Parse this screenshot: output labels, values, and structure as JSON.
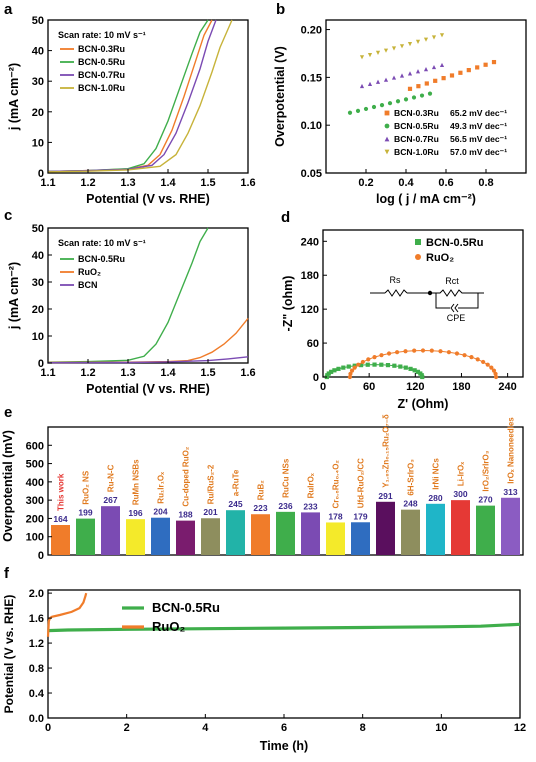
{
  "colors": {
    "orange": "#F07C2A",
    "green": "#3FAE4B",
    "purple": "#7B4BB3",
    "olive": "#C7B33A",
    "red": "#E53935",
    "blue": "#2F6DC0",
    "axis": "#000000"
  },
  "panel_labels": [
    "a",
    "b",
    "c",
    "d",
    "e",
    "f"
  ],
  "chart_data": [
    {
      "id": "a",
      "type": "line",
      "xlabel": "Potential (V vs. RHE)",
      "ylabel": "j (mA cm⁻²)",
      "xlim": [
        1.1,
        1.6
      ],
      "ylim": [
        0,
        50
      ],
      "xticks": [
        "1.1",
        "1.2",
        "1.3",
        "1.4",
        "1.5",
        "1.6"
      ],
      "yticks": [
        "0",
        "10",
        "20",
        "30",
        "40",
        "50"
      ],
      "annotation": "Scan rate: 10 mV s⁻¹",
      "series": [
        {
          "name": "BCN-0.3Ru",
          "color": "#F07C2A",
          "x": [
            1.1,
            1.2,
            1.3,
            1.35,
            1.38,
            1.41,
            1.44,
            1.47,
            1.49,
            1.51
          ],
          "y": [
            0.5,
            0.8,
            1.3,
            2.5,
            6,
            14,
            25,
            37,
            45,
            50
          ]
        },
        {
          "name": "BCN-0.5Ru",
          "color": "#3FAE4B",
          "x": [
            1.1,
            1.2,
            1.3,
            1.34,
            1.37,
            1.4,
            1.43,
            1.46,
            1.48,
            1.5
          ],
          "y": [
            0.5,
            0.8,
            1.4,
            3,
            8,
            17,
            28,
            39,
            46,
            50
          ]
        },
        {
          "name": "BCN-0.7Ru",
          "color": "#7B4BB3",
          "x": [
            1.1,
            1.2,
            1.3,
            1.36,
            1.39,
            1.42,
            1.45,
            1.48,
            1.5,
            1.52
          ],
          "y": [
            0.5,
            0.8,
            1.2,
            2.5,
            6,
            13,
            23,
            34,
            43,
            50
          ]
        },
        {
          "name": "BCN-1.0Ru",
          "color": "#C7B33A",
          "x": [
            1.1,
            1.2,
            1.3,
            1.38,
            1.42,
            1.45,
            1.48,
            1.51,
            1.53,
            1.56
          ],
          "y": [
            0.4,
            0.6,
            1.0,
            2.2,
            6,
            13,
            22,
            33,
            41,
            50
          ]
        }
      ]
    },
    {
      "id": "b",
      "type": "scatter",
      "xlabel": "log ( j / mA cm⁻²)",
      "ylabel": "Overpotential (V)",
      "xlim": [
        0,
        1.0
      ],
      "ylim": [
        0.05,
        0.21
      ],
      "xticks": [
        "0.2",
        "0.4",
        "0.6",
        "0.8"
      ],
      "yticks": [
        "0.05",
        "0.10",
        "0.15",
        "0.20"
      ],
      "series": [
        {
          "name": "BCN-0.3Ru",
          "slope": "65.2 mV dec⁻¹",
          "color": "#F07C2A",
          "marker": "square",
          "x0": 0.42,
          "x1": 0.84,
          "y0": 0.138,
          "y1": 0.166
        },
        {
          "name": "BCN-0.5Ru",
          "slope": "49.3 mV dec⁻¹",
          "color": "#3FAE4B",
          "marker": "circle",
          "x0": 0.12,
          "x1": 0.52,
          "y0": 0.113,
          "y1": 0.133
        },
        {
          "name": "BCN-0.7Ru",
          "slope": "56.5 mV dec⁻¹",
          "color": "#7B4BB3",
          "marker": "triangle-up",
          "x0": 0.18,
          "x1": 0.58,
          "y0": 0.141,
          "y1": 0.163
        },
        {
          "name": "BCN-1.0Ru",
          "slope": "57.0 mV dec⁻¹",
          "color": "#C7B33A",
          "marker": "triangle-down",
          "x0": 0.18,
          "x1": 0.58,
          "y0": 0.171,
          "y1": 0.194
        }
      ]
    },
    {
      "id": "c",
      "type": "line",
      "xlabel": "Potential (V vs. RHE)",
      "ylabel": "j (mA cm⁻²)",
      "xlim": [
        1.1,
        1.6
      ],
      "ylim": [
        0,
        50
      ],
      "xticks": [
        "1.1",
        "1.2",
        "1.3",
        "1.4",
        "1.5",
        "1.6"
      ],
      "yticks": [
        "0",
        "10",
        "20",
        "30",
        "40",
        "50"
      ],
      "annotation": "Scan rate: 10 mV s⁻¹",
      "series": [
        {
          "name": "BCN-0.5Ru",
          "color": "#3FAE4B",
          "x": [
            1.1,
            1.2,
            1.3,
            1.34,
            1.37,
            1.4,
            1.43,
            1.46,
            1.48,
            1.5
          ],
          "y": [
            0.3,
            0.5,
            1.0,
            2.5,
            7,
            15,
            26,
            37,
            45,
            50
          ]
        },
        {
          "name": "RuO₂",
          "color": "#F07C2A",
          "x": [
            1.1,
            1.3,
            1.4,
            1.45,
            1.48,
            1.51,
            1.54,
            1.57,
            1.6
          ],
          "y": [
            0.2,
            0.3,
            0.5,
            0.9,
            2,
            4,
            7,
            11,
            16.5
          ]
        },
        {
          "name": "BCN",
          "color": "#7B4BB3",
          "x": [
            1.1,
            1.3,
            1.4,
            1.5,
            1.55,
            1.6
          ],
          "y": [
            0.1,
            0.2,
            0.4,
            0.9,
            1.5,
            2.3
          ]
        }
      ]
    },
    {
      "id": "d",
      "type": "scatter",
      "xlabel": "Z' (Ohm)",
      "ylabel": "-Z\" (ohm)",
      "xlim": [
        0,
        260
      ],
      "ylim": [
        0,
        260
      ],
      "xticks": [
        "0",
        "60",
        "120",
        "180",
        "240"
      ],
      "yticks": [
        "0",
        "60",
        "120",
        "180",
        "240"
      ],
      "circuit_labels": {
        "rs": "Rs",
        "rct": "Rct",
        "cpe": "CPE"
      },
      "series": [
        {
          "name": "BCN-0.5Ru",
          "color": "#3FAE4B",
          "marker": "square",
          "center": 67,
          "radius": 62
        },
        {
          "name": "RuO₂",
          "color": "#F07C2A",
          "marker": "circle",
          "center": 130,
          "radius": 95
        }
      ]
    },
    {
      "id": "e",
      "type": "bar",
      "ylabel": "Overpotential (mV)",
      "ylim": [
        0,
        700
      ],
      "yticks": [
        "0",
        "100",
        "200",
        "300",
        "400",
        "500",
        "600"
      ],
      "categories": [
        "This work",
        "RuO₂ NS",
        "Ru-N-C",
        "RuMn NSBs",
        "Ru₁Ir₁Oₓ",
        "Cu-doped RuO₂",
        "Ru/RuS₂-2",
        "a-RuTe",
        "RuB₂",
        "RuCu NSs",
        "RuIrOₓ",
        "Cr₀.₆Ru₀.₄O₂",
        "Ufd-RuO₂/CC",
        "Y₁.₈₅Zn₀.₁₅Ru₂O₇₋δ",
        "6H-SrIrO₃",
        "IrNi NCs",
        "Li-IrOₓ",
        "IrO₂/SrIrO₃",
        "IrOₓ Nanoneedles"
      ],
      "values": [
        164,
        199,
        267,
        196,
        204,
        188,
        201,
        245,
        223,
        236,
        233,
        178,
        179,
        291,
        248,
        280,
        300,
        270,
        313
      ],
      "bar_colors": [
        "#F07C2A",
        "#3FAE4B",
        "#7B4BB3",
        "#F4EA2A",
        "#2F6DC0",
        "#7A1C6E",
        "#8E8E5E",
        "#22B3A8",
        "#F07C2A",
        "#3FAE4B",
        "#7B4BB3",
        "#F4EA2A",
        "#2F6DC0",
        "#5A0F5E",
        "#8E8E5E",
        "#1FB5C8",
        "#E53935",
        "#3FAE4B",
        "#8B5CC2"
      ],
      "label_colors": [
        "#E53935",
        "#E07A1F",
        "#E07A1F",
        "#E07A1F",
        "#E07A1F",
        "#E07A1F",
        "#E07A1F",
        "#E07A1F",
        "#E07A1F",
        "#E07A1F",
        "#E07A1F",
        "#E07A1F",
        "#E07A1F",
        "#E07A1F",
        "#E07A1F",
        "#E07A1F",
        "#E07A1F",
        "#E07A1F",
        "#E07A1F"
      ]
    },
    {
      "id": "f",
      "type": "line",
      "xlabel": "Time (h)",
      "ylabel": "Potential (V vs. RHE)",
      "xlim": [
        0,
        12
      ],
      "ylim": [
        0.0,
        2.05
      ],
      "xticks": [
        "0",
        "2",
        "4",
        "6",
        "8",
        "10",
        "12"
      ],
      "yticks": [
        "0.0",
        "0.4",
        "0.8",
        "1.2",
        "1.6",
        "2.0"
      ],
      "series": [
        {
          "name": "BCN-0.5Ru",
          "color": "#3FAE4B",
          "x": [
            0,
            0.5,
            2,
            4,
            6,
            8,
            10,
            11,
            12
          ],
          "y": [
            1.4,
            1.41,
            1.42,
            1.43,
            1.44,
            1.45,
            1.46,
            1.47,
            1.5
          ]
        },
        {
          "name": "RuO₂",
          "color": "#F07C2A",
          "x": [
            0,
            0.02,
            0.05,
            0.1,
            0.3,
            0.6,
            0.8,
            0.9,
            0.95,
            0.97
          ],
          "y": [
            1.3,
            1.55,
            1.6,
            1.62,
            1.65,
            1.7,
            1.76,
            1.85,
            1.95,
            2.0
          ]
        }
      ]
    }
  ]
}
